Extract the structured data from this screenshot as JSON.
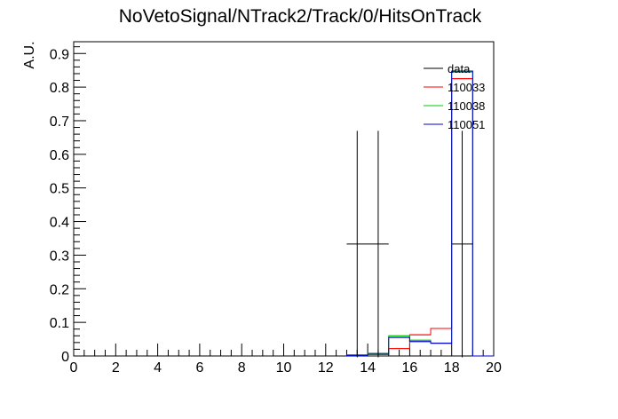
{
  "chart_data": {
    "type": "histogram",
    "title": "NoVetoSignal/NTrack2/Track/0/HitsOnTrack",
    "xlabel": "",
    "ylabel": "A.U.",
    "xlim": [
      0,
      20
    ],
    "ylim": [
      0,
      0.935
    ],
    "x_ticks": [
      0,
      2,
      4,
      6,
      8,
      10,
      12,
      14,
      16,
      18,
      20
    ],
    "y_ticks": [
      0,
      0.1,
      0.2,
      0.3,
      0.4,
      0.5,
      0.6,
      0.7,
      0.8,
      0.9
    ],
    "y_tick_labels": [
      "0",
      "0.1",
      "0.2",
      "0.3",
      "0.4",
      "0.5",
      "0.6",
      "0.7",
      "0.8",
      "0.9"
    ],
    "legend_position": "top-right",
    "bin_edges": [
      13,
      14,
      15,
      16,
      17,
      18,
      19,
      20
    ],
    "series": [
      {
        "name": "110033",
        "color": "#ff0000",
        "values": [
          0.003,
          0.008,
          0.022,
          0.063,
          0.082,
          0.825,
          0.0
        ]
      },
      {
        "name": "110038",
        "color": "#00cc00",
        "values": [
          0.002,
          0.006,
          0.06,
          0.047,
          0.038,
          0.845,
          0.0
        ]
      },
      {
        "name": "110051",
        "color": "#0000cc",
        "values": [
          0.002,
          0.005,
          0.055,
          0.043,
          0.038,
          0.848,
          0.0
        ]
      }
    ],
    "data_points": {
      "name": "data",
      "color": "#000000",
      "x": [
        14,
        18.5
      ],
      "xerr": [
        1,
        0.5
      ],
      "y": [
        0.333,
        0.333
      ],
      "yerr": [
        0.337,
        0.337
      ],
      "bars_at": [
        13.5,
        14.5,
        18.5
      ]
    }
  }
}
